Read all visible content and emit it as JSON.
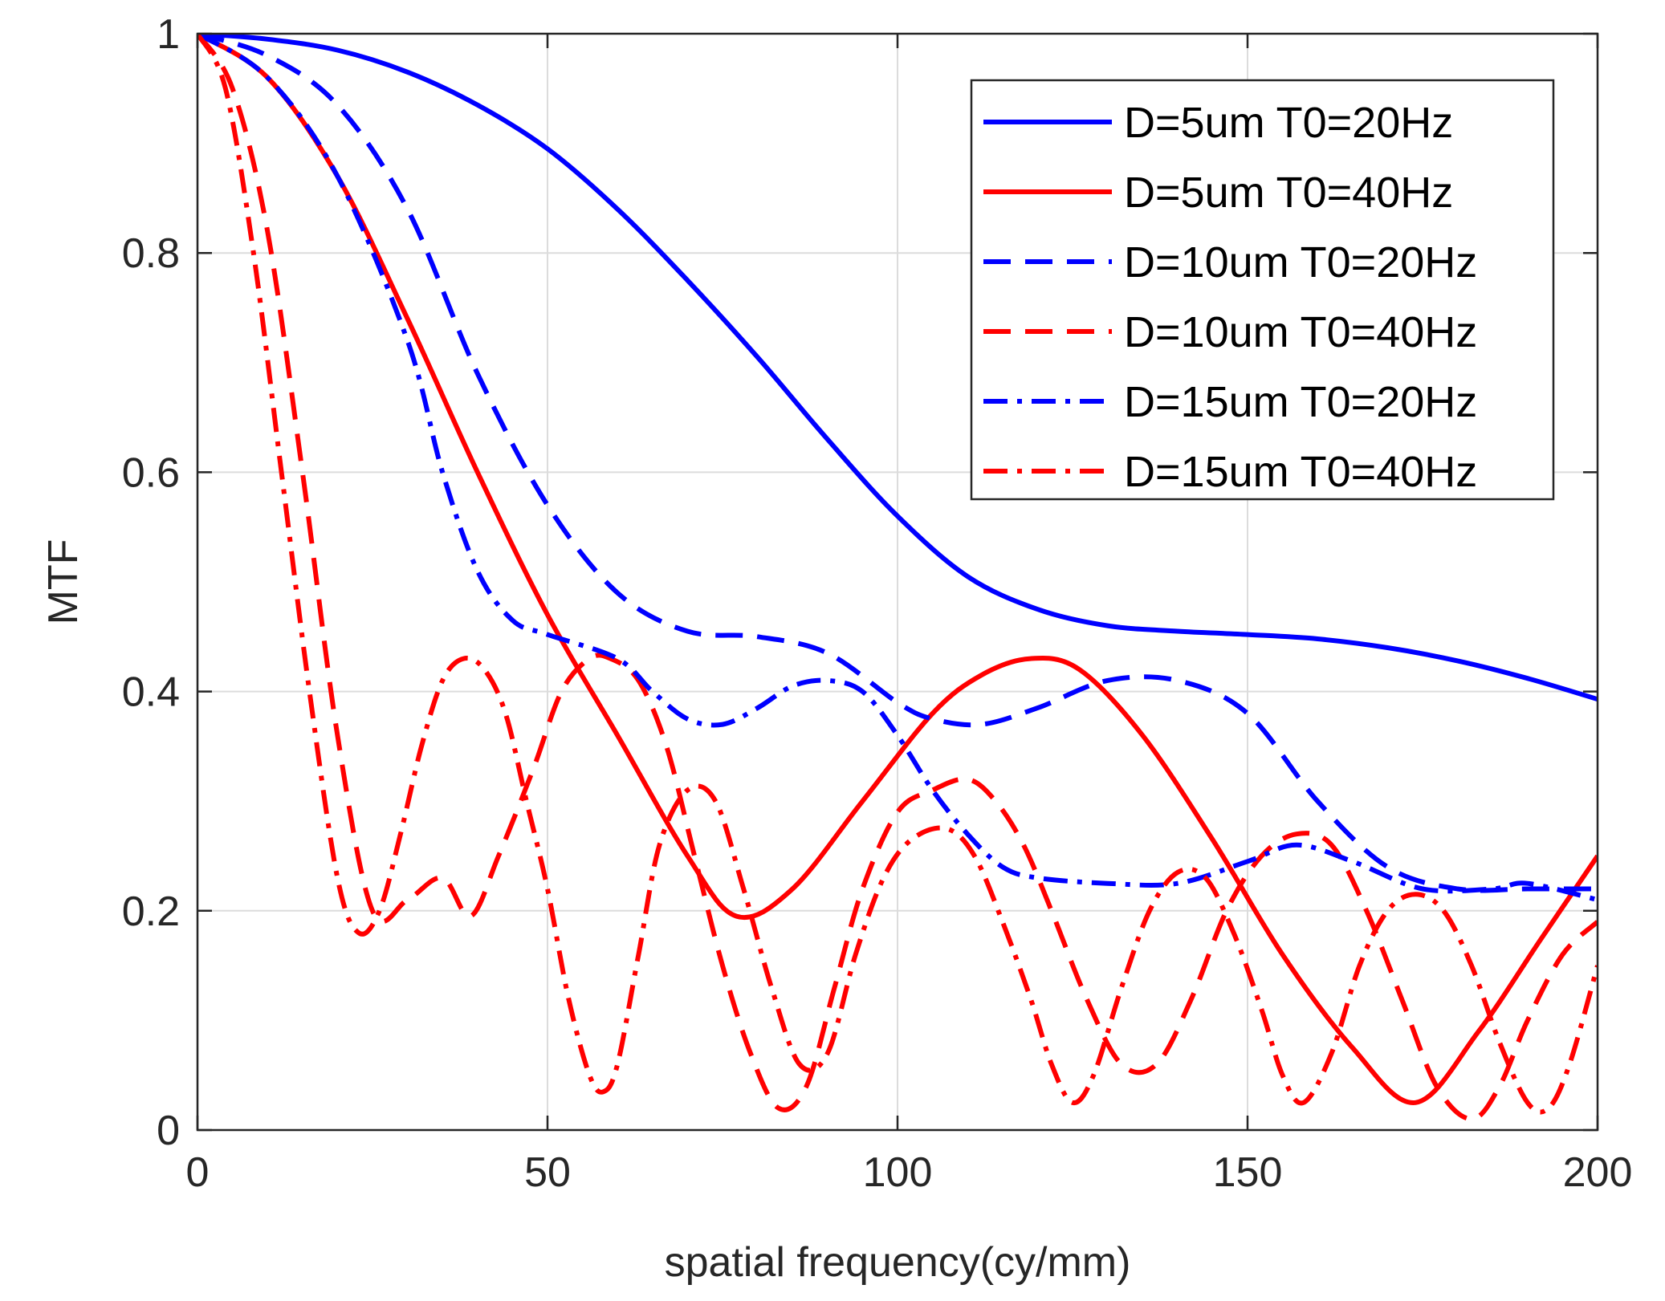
{
  "chart_data": {
    "type": "line",
    "title": "",
    "xlabel": "spatial frequency(cy/mm)",
    "ylabel": "MTF",
    "xlim": [
      0,
      200
    ],
    "ylim": [
      0,
      1
    ],
    "xticks": [
      0,
      50,
      100,
      150,
      200
    ],
    "xtick_labels": [
      "0",
      "50",
      "100",
      "150",
      "200"
    ],
    "yticks": [
      0,
      0.2,
      0.4,
      0.6,
      0.8,
      1
    ],
    "ytick_labels": [
      "0",
      "0.2",
      "0.4",
      "0.6",
      "0.8",
      "1"
    ],
    "grid": true,
    "legend_position": "top-right",
    "series": [
      {
        "name": "D=5um T0=20Hz",
        "color": "#0000ff",
        "style": "solid",
        "x": [
          0,
          10,
          20,
          30,
          40,
          50,
          60,
          70,
          80,
          90,
          100,
          110,
          120,
          130,
          140,
          150,
          160,
          170,
          180,
          190,
          200
        ],
        "y": [
          1.0,
          0.995,
          0.985,
          0.965,
          0.935,
          0.895,
          0.84,
          0.775,
          0.705,
          0.63,
          0.56,
          0.505,
          0.475,
          0.46,
          0.455,
          0.452,
          0.448,
          0.44,
          0.428,
          0.412,
          0.393
        ]
      },
      {
        "name": "D=5um T0=40Hz",
        "color": "#ff0000",
        "style": "solid",
        "x": [
          0,
          10,
          20,
          30,
          40,
          50,
          60,
          70,
          77,
          85,
          95,
          105,
          112,
          119,
          126,
          135,
          145,
          155,
          165,
          174,
          183,
          192,
          200
        ],
        "y": [
          1.0,
          0.96,
          0.87,
          0.74,
          0.6,
          0.47,
          0.36,
          0.25,
          0.195,
          0.22,
          0.3,
          0.38,
          0.415,
          0.43,
          0.42,
          0.36,
          0.265,
          0.16,
          0.075,
          0.025,
          0.09,
          0.175,
          0.25
        ]
      },
      {
        "name": "D=10um T0=20Hz",
        "color": "#0000ff",
        "style": "dashed",
        "x": [
          0,
          10,
          20,
          30,
          40,
          50,
          60,
          70,
          80,
          90,
          100,
          105,
          112,
          120,
          130,
          140,
          150,
          160,
          170,
          180,
          190,
          200
        ],
        "y": [
          1.0,
          0.98,
          0.935,
          0.84,
          0.69,
          0.57,
          0.49,
          0.455,
          0.45,
          0.435,
          0.39,
          0.375,
          0.37,
          0.385,
          0.41,
          0.41,
          0.38,
          0.3,
          0.24,
          0.22,
          0.22,
          0.22
        ]
      },
      {
        "name": "D=10um T0=40Hz",
        "color": "#ff0000",
        "style": "dashed",
        "x": [
          0,
          5,
          10,
          15,
          20,
          25,
          30,
          35,
          39,
          43,
          48,
          52,
          56,
          59,
          63,
          67,
          71,
          75,
          79,
          83,
          87,
          91,
          95,
          100,
          105,
          110,
          114,
          118,
          122,
          127,
          132,
          137,
          142,
          147,
          152,
          157,
          162,
          167,
          172,
          177,
          182,
          186,
          190,
          195,
          200
        ],
        "y": [
          1.0,
          0.95,
          0.82,
          0.6,
          0.36,
          0.2,
          0.21,
          0.23,
          0.195,
          0.25,
          0.33,
          0.4,
          0.43,
          0.43,
          0.41,
          0.35,
          0.25,
          0.15,
          0.07,
          0.02,
          0.04,
          0.13,
          0.22,
          0.29,
          0.31,
          0.32,
          0.3,
          0.26,
          0.2,
          0.12,
          0.06,
          0.06,
          0.12,
          0.2,
          0.25,
          0.27,
          0.26,
          0.2,
          0.12,
          0.04,
          0.01,
          0.04,
          0.1,
          0.16,
          0.19
        ]
      },
      {
        "name": "D=15um T0=20Hz",
        "color": "#0000ff",
        "style": "dashdot",
        "x": [
          0,
          10,
          20,
          30,
          35,
          40,
          45,
          50,
          60,
          65,
          70,
          75,
          80,
          85,
          90,
          95,
          100,
          105,
          110,
          115,
          120,
          130,
          140,
          150,
          157,
          165,
          175,
          185,
          190,
          200
        ],
        "y": [
          1.0,
          0.96,
          0.87,
          0.72,
          0.6,
          0.51,
          0.465,
          0.452,
          0.43,
          0.4,
          0.375,
          0.37,
          0.385,
          0.405,
          0.41,
          0.4,
          0.36,
          0.31,
          0.27,
          0.24,
          0.23,
          0.225,
          0.225,
          0.245,
          0.26,
          0.245,
          0.22,
          0.22,
          0.225,
          0.21
        ]
      },
      {
        "name": "D=15um T0=40Hz",
        "color": "#ff0000",
        "style": "dashdot",
        "x": [
          0,
          4,
          8,
          12,
          16,
          20,
          23,
          26,
          29,
          32,
          35,
          38,
          41,
          44,
          47,
          50,
          53,
          56,
          58,
          60,
          63,
          66,
          70,
          74,
          78,
          82,
          86,
          90,
          94,
          98,
          102,
          107,
          111,
          115,
          119,
          122,
          125,
          128,
          132,
          136,
          140,
          144,
          148,
          152,
          155,
          158,
          162,
          166,
          170,
          174,
          178,
          182,
          186,
          190,
          193,
          196,
          200
        ],
        "y": [
          1.0,
          0.95,
          0.8,
          0.6,
          0.4,
          0.23,
          0.18,
          0.2,
          0.27,
          0.35,
          0.41,
          0.43,
          0.42,
          0.38,
          0.3,
          0.22,
          0.12,
          0.05,
          0.035,
          0.06,
          0.16,
          0.26,
          0.31,
          0.3,
          0.22,
          0.13,
          0.06,
          0.07,
          0.16,
          0.23,
          0.265,
          0.275,
          0.25,
          0.19,
          0.12,
          0.06,
          0.025,
          0.05,
          0.13,
          0.2,
          0.235,
          0.23,
          0.18,
          0.11,
          0.05,
          0.025,
          0.07,
          0.15,
          0.2,
          0.215,
          0.2,
          0.15,
          0.08,
          0.025,
          0.02,
          0.06,
          0.15
        ]
      }
    ]
  }
}
